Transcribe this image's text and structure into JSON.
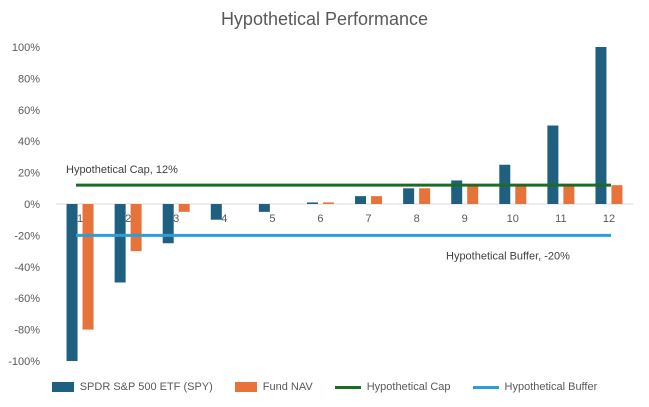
{
  "chart_data": {
    "type": "bar",
    "title": "Hypothetical Performance",
    "xlabel": "",
    "ylabel": "",
    "categories": [
      "1",
      "2",
      "3",
      "4",
      "5",
      "6",
      "7",
      "8",
      "9",
      "10",
      "11",
      "12"
    ],
    "yticks": [
      "-100%",
      "-80%",
      "-60%",
      "-40%",
      "-20%",
      "0%",
      "20%",
      "40%",
      "60%",
      "80%",
      "100%"
    ],
    "ylim": [
      -100,
      100
    ],
    "series": [
      {
        "name": "SPDR S&P 500 ETF (SPY)",
        "color": "#1f5f80",
        "values": [
          -100,
          -50,
          -25,
          -10,
          -5,
          1,
          5,
          10,
          15,
          25,
          50,
          100
        ]
      },
      {
        "name": "Fund NAV",
        "color": "#e8733a",
        "values": [
          -80,
          -30,
          -5,
          0,
          0,
          1,
          5,
          10,
          12,
          12,
          12,
          12
        ]
      }
    ],
    "lines": [
      {
        "name": "Hypothetical Cap",
        "color": "#1e6b24",
        "value": 12,
        "annotation": "Hypothetical Cap, 12%"
      },
      {
        "name": "Hypothetical Buffer",
        "color": "#2a9fd6",
        "value": -20,
        "annotation": "Hypothetical Buffer, -20%"
      }
    ],
    "legend": "bottom",
    "grid": false
  }
}
